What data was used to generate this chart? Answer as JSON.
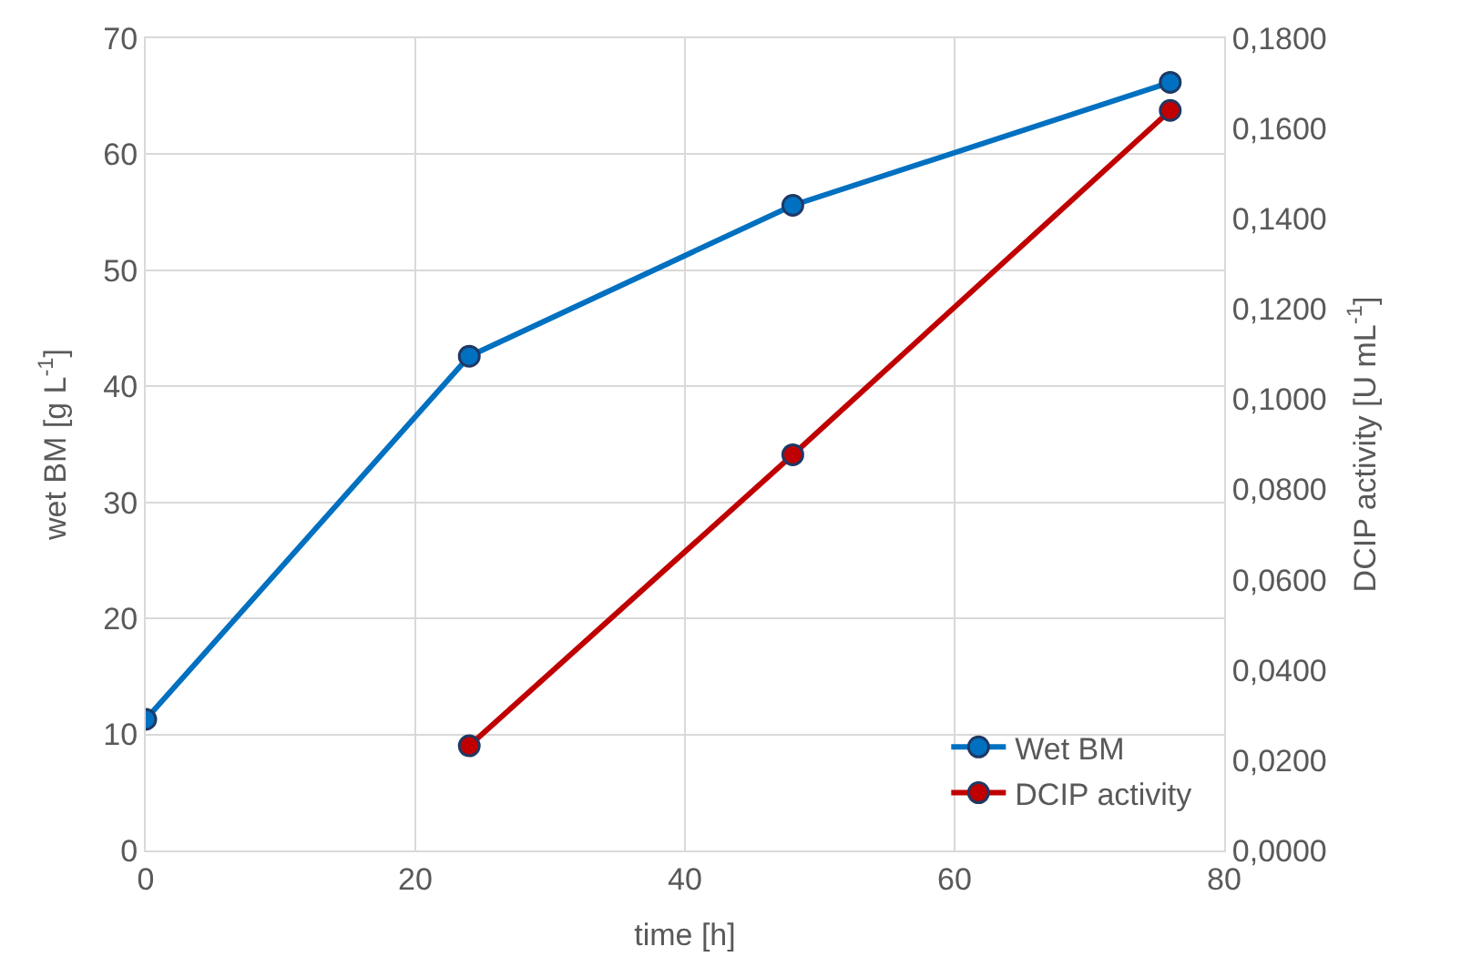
{
  "chart_data": {
    "type": "line",
    "xlabel": "time [h]",
    "ylabel": "wet BM [g L$^{-1}$]",
    "y2label": "DCIP activity [U mL$^{-1}$]",
    "xlim": [
      0,
      80
    ],
    "xticks": [
      0,
      20,
      40,
      60,
      80
    ],
    "ylim": [
      0,
      70
    ],
    "yticks": [
      0,
      10,
      20,
      30,
      40,
      50,
      60,
      70
    ],
    "y2lim": [
      0,
      0.18
    ],
    "y2ticks": [
      {
        "value": 0,
        "label": "0,0000"
      },
      {
        "value": 0.02,
        "label": "0,0200"
      },
      {
        "value": 0.04,
        "label": "0,0400"
      },
      {
        "value": 0.06,
        "label": "0,0600"
      },
      {
        "value": 0.08,
        "label": "0,0800"
      },
      {
        "value": 0.1,
        "label": "0,1000"
      },
      {
        "value": 0.12,
        "label": "0,1200"
      },
      {
        "value": 0.14,
        "label": "0,1400"
      },
      {
        "value": 0.16,
        "label": "0,1600"
      },
      {
        "value": 0.18,
        "label": "0,1800"
      }
    ],
    "grid": true,
    "legend": "bottom right",
    "marker": "circle",
    "line_style": "solid",
    "series": [
      {
        "name": "Wet BM",
        "color": "#0070c0",
        "x": [
          0,
          24,
          48,
          76
        ],
        "values": [
          11.3,
          42.6,
          55.6,
          66.2
        ]
      },
      {
        "name": "DCIP activity",
        "color": "#c00000",
        "axis": "y2",
        "x": [
          24,
          48,
          76
        ],
        "values": [
          0.0232,
          0.0877,
          0.164
        ]
      }
    ]
  }
}
